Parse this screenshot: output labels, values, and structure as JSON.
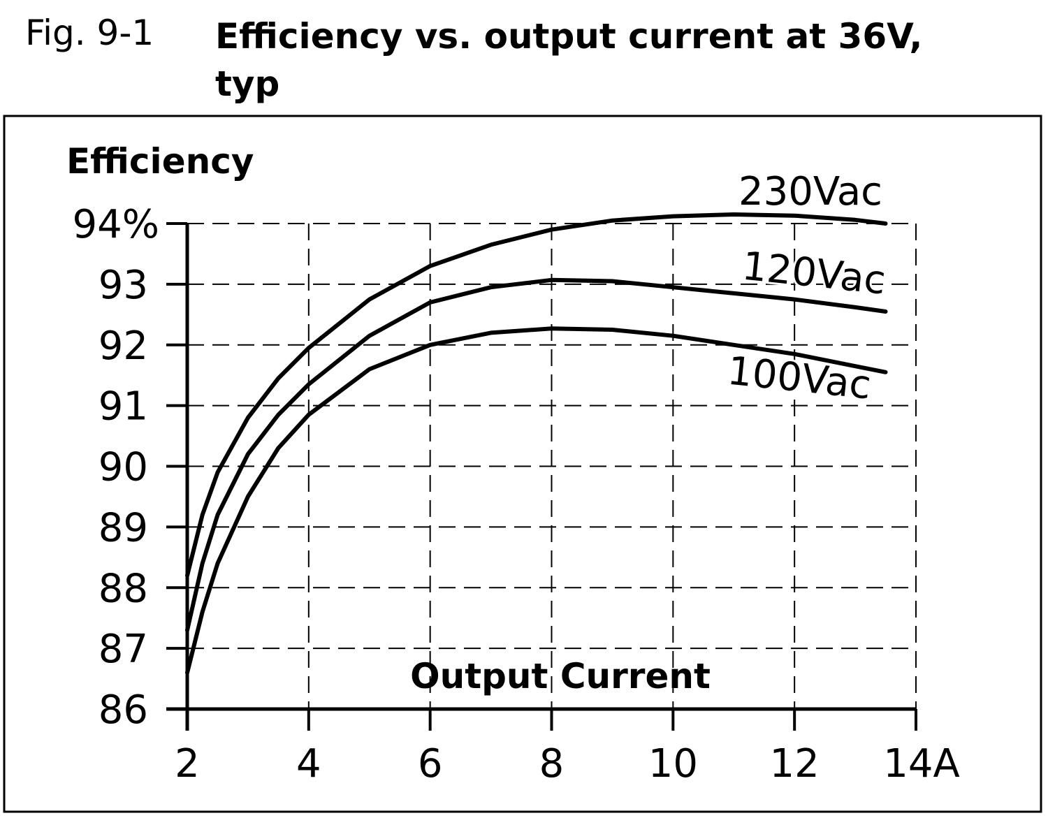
{
  "chart_data": {
    "type": "line",
    "figure_label": "Fig. 9-1",
    "title": "Efficiency vs. output current at 36V, typ",
    "y_label": "Efficiency",
    "x_label": "Output Current",
    "x": [
      2,
      2.25,
      2.5,
      3,
      3.5,
      4,
      5,
      6,
      7,
      8,
      9,
      10,
      11,
      12,
      13,
      13.5
    ],
    "series": [
      {
        "name": "230Vac",
        "color": "#000000",
        "values": [
          88.2,
          89.2,
          89.9,
          90.8,
          91.45,
          91.95,
          92.75,
          93.3,
          93.65,
          93.9,
          94.05,
          94.12,
          94.15,
          94.13,
          94.06,
          94.0
        ]
      },
      {
        "name": "120Vac",
        "color": "#000000",
        "values": [
          87.3,
          88.4,
          89.2,
          90.2,
          90.85,
          91.35,
          92.15,
          92.7,
          92.95,
          93.07,
          93.05,
          92.95,
          92.85,
          92.75,
          92.62,
          92.55
        ]
      },
      {
        "name": "100Vac",
        "color": "#000000",
        "values": [
          86.6,
          87.6,
          88.4,
          89.5,
          90.3,
          90.85,
          91.6,
          92.0,
          92.2,
          92.27,
          92.25,
          92.15,
          92.0,
          91.85,
          91.65,
          91.55
        ]
      }
    ],
    "xlim": [
      2,
      14
    ],
    "ylim": [
      86,
      94
    ],
    "xticks": [
      2,
      4,
      6,
      8,
      10,
      12,
      {
        "value": 14,
        "label": "14A"
      }
    ],
    "yticks": [
      86,
      87,
      88,
      89,
      90,
      91,
      92,
      93,
      {
        "value": 94,
        "label": "94%"
      }
    ],
    "grid": true
  }
}
